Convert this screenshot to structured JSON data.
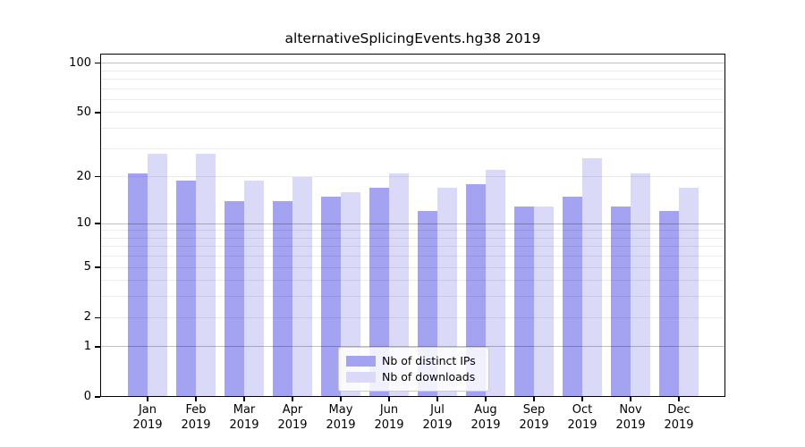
{
  "figure": {
    "title": "alternativeSplicingEvents.hg38 2019"
  },
  "chart_data": {
    "type": "bar",
    "title": "alternativeSplicingEvents.hg38 2019",
    "categories": [
      "Jan",
      "Feb",
      "Mar",
      "Apr",
      "May",
      "Jun",
      "Jul",
      "Aug",
      "Sep",
      "Oct",
      "Nov",
      "Dec"
    ],
    "category_year": "2019",
    "series": [
      {
        "name": "Nb of distinct IPs",
        "color": "#a3a3f2",
        "values": [
          21,
          19,
          14,
          14,
          15,
          17,
          12,
          18,
          13,
          15,
          13,
          12
        ]
      },
      {
        "name": "Nb of downloads",
        "color": "#dadaf8",
        "values": [
          28,
          28,
          19,
          20,
          16,
          21,
          17,
          22,
          13,
          26,
          21,
          17
        ]
      }
    ],
    "yscale": "log1p",
    "ylim": [
      0,
      115
    ],
    "y_tick_values": [
      100,
      50,
      20,
      10,
      5,
      2,
      1,
      0
    ],
    "y_major_gridlines": [
      1,
      10,
      100
    ],
    "y_minor_gridlines": [
      2,
      3,
      4,
      5,
      6,
      7,
      8,
      9,
      20,
      30,
      40,
      50,
      60,
      70,
      80,
      90
    ],
    "grid": true,
    "legend_position": "lower center"
  },
  "colors": {
    "major_grid": "rgba(0,0,0,0.25)",
    "minor_grid": "rgba(0,0,0,0.08)",
    "spine": "#000000",
    "text": "#000000"
  }
}
